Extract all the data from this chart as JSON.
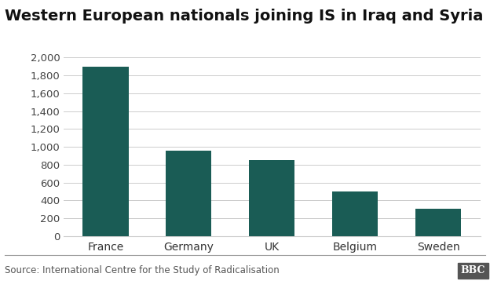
{
  "title": "Western European nationals joining IS in Iraq and Syria",
  "categories": [
    "France",
    "Germany",
    "UK",
    "Belgium",
    "Sweden"
  ],
  "values": [
    1900,
    960,
    850,
    500,
    310
  ],
  "bar_color": "#1a5c55",
  "ylim": [
    0,
    2000
  ],
  "yticks": [
    0,
    200,
    400,
    600,
    800,
    1000,
    1200,
    1400,
    1600,
    1800,
    2000
  ],
  "ytick_labels": [
    "0",
    "200",
    "400",
    "600",
    "800",
    "1,000",
    "1,200",
    "1,400",
    "1,600",
    "1,800",
    "2,000"
  ],
  "source_text": "Source: International Centre for the Study of Radicalisation",
  "bbc_logo_text": "BBC",
  "title_fontsize": 14,
  "tick_fontsize": 9.5,
  "source_fontsize": 8.5,
  "background_color": "#ffffff",
  "grid_color": "#cccccc",
  "separator_color": "#999999"
}
